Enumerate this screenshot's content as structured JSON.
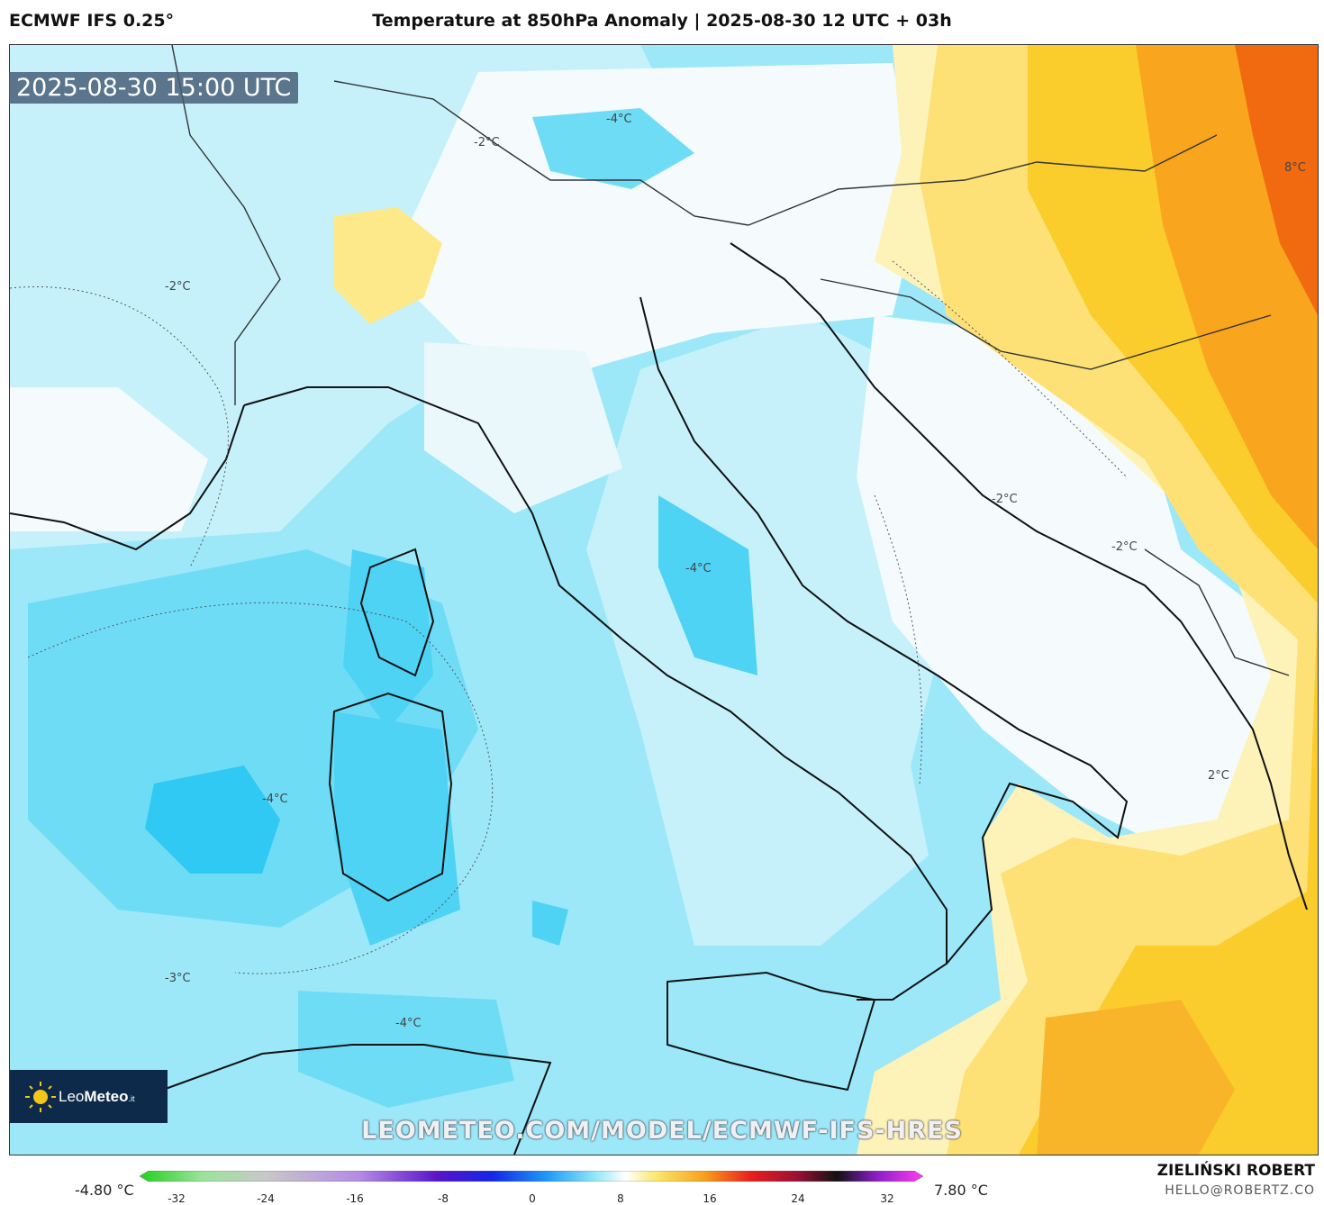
{
  "header": {
    "model": "ECMWF IFS 0.25°",
    "title": "Temperature at 850hPa Anomaly | 2025-08-30 12 UTC + 03h"
  },
  "map": {
    "timestamp": "2025-08-30 15:00 UTC",
    "watermark": "LEOMETEO.COM/MODEL/ECMWF-IFS-HRES",
    "contour_labels": [
      {
        "id": "iso-1",
        "text": "-4°C"
      },
      {
        "id": "iso-2",
        "text": "-2°C"
      },
      {
        "id": "iso-3",
        "text": "-2°C"
      },
      {
        "id": "iso-4",
        "text": "8°C"
      },
      {
        "id": "iso-5",
        "text": "-2°C"
      },
      {
        "id": "iso-6",
        "text": "-2°C"
      },
      {
        "id": "iso-7",
        "text": "-4°C"
      },
      {
        "id": "iso-8",
        "text": "-4°C"
      },
      {
        "id": "iso-9",
        "text": "2°C"
      },
      {
        "id": "iso-10",
        "text": "-3°C"
      },
      {
        "id": "iso-11",
        "text": "-4°C"
      }
    ],
    "colors": {
      "sea_light_cyan": "#c8f0fb",
      "cyan": "#8ee6f8",
      "deep_cyan": "#4fd3f5",
      "white": "#f7fbfd",
      "pale_yellow": "#fdf0b0",
      "yellow": "#fbd84a",
      "orange": "#f8a21c",
      "dark_orange": "#f26a10"
    }
  },
  "logo": {
    "text_light": "Leo",
    "text_bold": "Meteo",
    "suffix": ".it"
  },
  "colorbar": {
    "min_label": "-4.80 °C",
    "max_label": "7.80 °C",
    "ticks": [
      "-32",
      "-24",
      "-16",
      "-8",
      "0",
      "8",
      "16",
      "24",
      "32"
    ]
  },
  "credits": {
    "author": "ZIELIŃSKI ROBERT",
    "email": "HELLO@ROBERTZ.CO"
  }
}
